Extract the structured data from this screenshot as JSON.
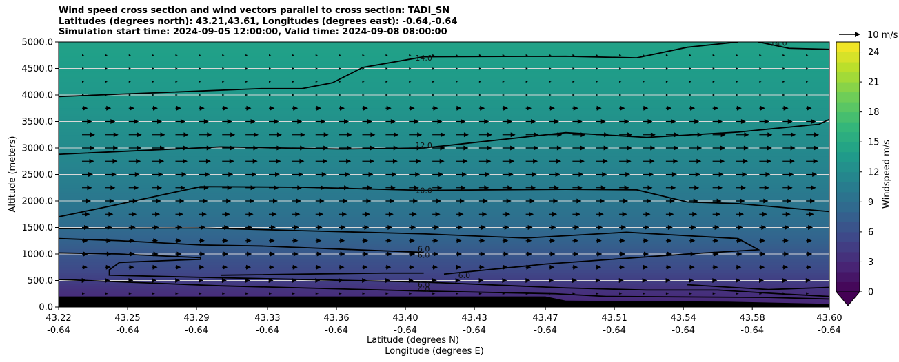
{
  "title": {
    "line1": "Wind speed cross section and wind vectors parallel to cross section: TADI_SN",
    "line2": "Latitudes (degrees north): 43.21,43.61, Longitudes (degrees east): -0.64,-0.64",
    "line3": "Simulation start time: 2024-09-05 12:00:00, Valid time: 2024-09-08 08:00:00"
  },
  "chart_data": {
    "type": "heatmap",
    "subtype": "filled-contour cross section with wind vectors",
    "xlabel": "Latitude (degrees N)",
    "xlabel2": "Longitude (degrees E)",
    "ylabel": "Altitude (meters)",
    "ylim": [
      0,
      5000
    ],
    "xlim": [
      43.22,
      43.6
    ],
    "x_ticks": [
      {
        "lat": "43.22",
        "lon": "-0.64",
        "value": 43.22
      },
      {
        "lat": "43.25",
        "lon": "-0.64",
        "value": 43.254
      },
      {
        "lat": "43.29",
        "lon": "-0.64",
        "value": 43.288
      },
      {
        "lat": "43.33",
        "lon": "-0.64",
        "value": 43.323
      },
      {
        "lat": "43.36",
        "lon": "-0.64",
        "value": 43.357
      },
      {
        "lat": "43.40",
        "lon": "-0.64",
        "value": 43.391
      },
      {
        "lat": "43.43",
        "lon": "-0.64",
        "value": 43.425
      },
      {
        "lat": "43.47",
        "lon": "-0.64",
        "value": 43.46
      },
      {
        "lat": "43.51",
        "lon": "-0.64",
        "value": 43.494
      },
      {
        "lat": "43.54",
        "lon": "-0.64",
        "value": 43.528
      },
      {
        "lat": "43.58",
        "lon": "-0.64",
        "value": 43.562
      },
      {
        "lat": "43.60",
        "lon": "-0.64",
        "value": 43.6
      }
    ],
    "y_ticks": [
      "0.0",
      "500.0",
      "1000.0",
      "1500.0",
      "2000.0",
      "2500.0",
      "3000.0",
      "3500.0",
      "4000.0",
      "4500.0",
      "5000.0"
    ],
    "y_tick_values": [
      0,
      500,
      1000,
      1500,
      2000,
      2500,
      3000,
      3500,
      4000,
      4500,
      5000
    ],
    "colorbar": {
      "label": "Windspeed m/s",
      "min": 0,
      "max": 25,
      "ticks": [
        "0",
        "3",
        "6",
        "9",
        "12",
        "15",
        "18",
        "21",
        "24"
      ],
      "tick_values": [
        0,
        3,
        6,
        9,
        12,
        15,
        18,
        21,
        24
      ],
      "extend": "min",
      "colormap": "viridis"
    },
    "quiver_key": {
      "label": "10 m/s",
      "speed": 10
    },
    "speed_profile": [
      {
        "z": 0,
        "speed": 2.5
      },
      {
        "z": 300,
        "speed": 3.5
      },
      {
        "z": 700,
        "speed": 5.5
      },
      {
        "z": 1300,
        "speed": 8
      },
      {
        "z": 1800,
        "speed": 9.5
      },
      {
        "z": 2500,
        "speed": 11
      },
      {
        "z": 3200,
        "speed": 12.2
      },
      {
        "z": 4000,
        "speed": 13.3
      },
      {
        "z": 5000,
        "speed": 14.3
      }
    ],
    "terrain_altitude_m": [
      {
        "x": 43.22,
        "z": 200
      },
      {
        "x": 43.46,
        "z": 200
      },
      {
        "x": 43.47,
        "z": 120
      },
      {
        "x": 43.55,
        "z": 100
      },
      {
        "x": 43.6,
        "z": 60
      }
    ],
    "contours": [
      {
        "label": "14.0",
        "label_pos": {
          "x": 43.4,
          "z": 4700
        },
        "points": [
          [
            43.22,
            3970
          ],
          [
            43.32,
            4120
          ],
          [
            43.34,
            4120
          ],
          [
            43.355,
            4230
          ],
          [
            43.37,
            4520
          ],
          [
            43.4,
            4720
          ],
          [
            43.47,
            4730
          ],
          [
            43.505,
            4700
          ],
          [
            43.53,
            4900
          ],
          [
            43.555,
            5000
          ]
        ]
      },
      {
        "label": "14.0",
        "label_pos": {
          "x": 43.575,
          "z": 4980
        },
        "points": [
          [
            43.565,
            5000
          ],
          [
            43.58,
            4880
          ],
          [
            43.6,
            4860
          ]
        ]
      },
      {
        "label": "12.0",
        "label_pos": {
          "x": 43.4,
          "z": 3050
        },
        "points": [
          [
            43.22,
            2880
          ],
          [
            43.3,
            3020
          ],
          [
            43.36,
            2980
          ],
          [
            43.4,
            3000
          ],
          [
            43.47,
            3290
          ],
          [
            43.51,
            3200
          ],
          [
            43.555,
            3300
          ],
          [
            43.595,
            3450
          ],
          [
            43.6,
            3540
          ]
        ]
      },
      {
        "label": "10.0",
        "label_pos": {
          "x": 43.4,
          "z": 2200
        },
        "points": [
          [
            43.22,
            1700
          ],
          [
            43.245,
            1900
          ],
          [
            43.29,
            2270
          ],
          [
            43.34,
            2260
          ],
          [
            43.4,
            2200
          ],
          [
            43.47,
            2220
          ],
          [
            43.505,
            2210
          ],
          [
            43.53,
            1980
          ],
          [
            43.555,
            1950
          ],
          [
            43.6,
            1800
          ]
        ]
      },
      {
        "label": "6.0",
        "label_pos": {
          "x": 43.4,
          "z": 1100
        },
        "points": [
          [
            43.22,
            1480
          ],
          [
            43.29,
            1490
          ],
          [
            43.4,
            1380
          ],
          [
            43.45,
            1300
          ],
          [
            43.5,
            1410
          ],
          [
            43.555,
            1290
          ],
          [
            43.565,
            1080
          ],
          [
            43.53,
            1000
          ],
          [
            43.46,
            810
          ],
          [
            43.41,
            620
          ]
        ]
      },
      {
        "label": "6.0",
        "label_pos": {
          "x": 43.4,
          "z": 980
        },
        "points": [
          [
            43.22,
            1290
          ],
          [
            43.25,
            1250
          ],
          [
            43.29,
            1170
          ],
          [
            43.32,
            1150
          ],
          [
            43.4,
            1030
          ]
        ]
      },
      {
        "label": "6.0",
        "label_pos": {
          "x": 43.4,
          "z": 420
        },
        "points": [
          [
            43.22,
            1020
          ],
          [
            43.25,
            1000
          ],
          [
            43.29,
            930
          ],
          [
            43.29,
            900
          ],
          [
            43.25,
            840
          ],
          [
            43.245,
            700
          ],
          [
            43.245,
            600
          ],
          [
            43.29,
            560
          ],
          [
            43.4,
            470
          ],
          [
            43.47,
            360
          ],
          [
            43.51,
            320
          ],
          [
            43.545,
            320
          ],
          [
            43.575,
            250
          ],
          [
            43.6,
            200
          ]
        ]
      },
      {
        "label": "6.0",
        "label_pos": {
          "x": 43.42,
          "z": 600
        },
        "points": [
          [
            43.3,
            600
          ],
          [
            43.38,
            640
          ],
          [
            43.4,
            640
          ]
        ]
      },
      {
        "label": "4.0",
        "label_pos": {
          "x": 43.4,
          "z": 340
        },
        "points": [
          [
            43.22,
            520
          ],
          [
            43.3,
            400
          ],
          [
            43.4,
            300
          ],
          [
            43.465,
            250
          ],
          [
            43.49,
            200
          ],
          [
            43.57,
            180
          ],
          [
            43.6,
            150
          ]
        ]
      },
      {
        "label": "",
        "label_pos": {
          "x": 43.6,
          "z": 380
        },
        "points": [
          [
            43.53,
            420
          ],
          [
            43.57,
            330
          ],
          [
            43.6,
            370
          ]
        ]
      }
    ]
  }
}
